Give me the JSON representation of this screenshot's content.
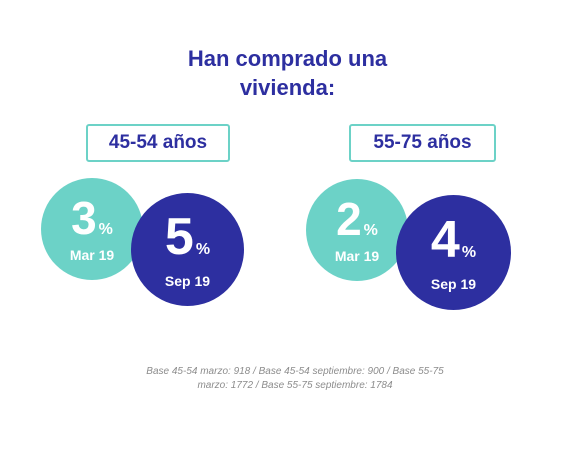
{
  "title": {
    "line1": "Han comprado una",
    "line2": "vivienda:"
  },
  "groups": [
    {
      "label": "45-54 años",
      "values": [
        {
          "value": "3",
          "unit": "%",
          "period": "Mar 19"
        },
        {
          "value": "5",
          "unit": "%",
          "period": "Sep 19"
        }
      ]
    },
    {
      "label": "55-75 años",
      "values": [
        {
          "value": "2",
          "unit": "%",
          "period": "Mar 19"
        },
        {
          "value": "4",
          "unit": "%",
          "period": "Sep 19"
        }
      ]
    }
  ],
  "footnote": "Base 45-54 marzo: 918 / Base 45-54 septiembre: 900 / Base 55-75 marzo: 1772 / Base 55-75 septiembre: 1784",
  "colors": {
    "navy": "#2d2fa0",
    "teal": "#6cd2c7",
    "note": "#8c8c8c"
  }
}
